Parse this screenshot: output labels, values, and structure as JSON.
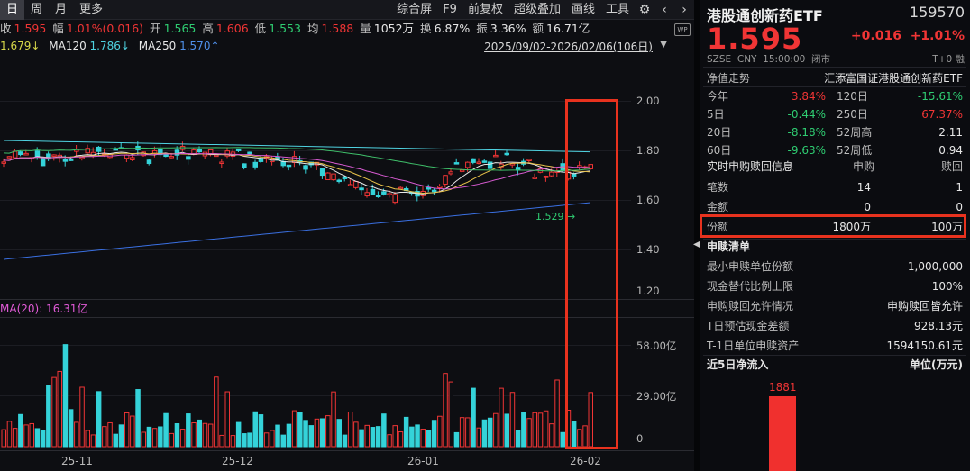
{
  "toolbar": {
    "periods": [
      "日",
      "周",
      "月",
      "更多"
    ],
    "tools": [
      "综合屏",
      "F9",
      "前复权",
      "超级叠加",
      "画线",
      "工具"
    ],
    "settings_icon": "gear-icon",
    "back_icon": "chevron-left-icon",
    "fwd_icon": "chevron-right-icon"
  },
  "quote": {
    "close_label": "收",
    "close": "1.595",
    "amp_label": "幅",
    "amp": "1.01%(0.016)",
    "open_label": "开",
    "open": "1.565",
    "high_label": "高",
    "high": "1.606",
    "low_label": "低",
    "low": "1.553",
    "avg_label": "均",
    "avg": "1.588",
    "vol_label": "量",
    "vol": "1052万",
    "turn_label": "换",
    "turn": "6.87%",
    "swing_label": "振",
    "swing": "3.36%",
    "amount_label": "额",
    "amount": "16.71亿"
  },
  "ma": {
    "ma_first": "1.679↓",
    "ma120_label": "MA120",
    "ma120": "1.786↓",
    "ma250_label": "MA250",
    "ma250": "1.570↑"
  },
  "range_text": "2025/09/02-2026/02/06(106日)",
  "price_axis": [
    "2.00",
    "1.80",
    "1.60",
    "1.40",
    "1.20"
  ],
  "current_tag": "1.529",
  "volume": {
    "title": "MA(20): 16.31亿",
    "axis": [
      "58.00亿",
      "29.00亿",
      "0"
    ]
  },
  "x_axis": [
    "25-11",
    "25-12",
    "26-01",
    "26-02"
  ],
  "colors": {
    "up": "#f03535",
    "down": "#2fcd72",
    "cyan": "#34d3d9",
    "highlight": "#e8321e"
  },
  "chart_data": {
    "type": "candlestick",
    "price_ylim": [
      1.2,
      2.0
    ],
    "volume_ylim": [
      0,
      58
    ]
  },
  "panel": {
    "name": "港股通创新药ETF",
    "code": "159570",
    "price": "1.595",
    "change": "+0.016",
    "change_pct": "+1.01%",
    "info": [
      "SZSE",
      "CNY",
      "15:00:00",
      "闭市"
    ],
    "info_right": "T+0 融",
    "nav_label": "净值走势",
    "nav_index": "汇添富国证港股通创新药ETF",
    "perf": [
      {
        "l1": "今年",
        "v1": "3.84%",
        "c1": "red",
        "l2": "120日",
        "v2": "-15.61%",
        "c2": "green"
      },
      {
        "l1": "5日",
        "v1": "-0.44%",
        "c1": "green",
        "l2": "250日",
        "v2": "67.37%",
        "c2": "red"
      },
      {
        "l1": "20日",
        "v1": "-8.18%",
        "c1": "green",
        "l2": "52周高",
        "v2": "2.11",
        "c2": "white"
      },
      {
        "l1": "60日",
        "v1": "-9.63%",
        "c1": "green",
        "l2": "52周低",
        "v2": "0.94",
        "c2": "white"
      }
    ],
    "realtime": {
      "title": "实时申购赎回信息",
      "col1": "申购",
      "col2": "赎回",
      "rows": [
        {
          "label": "笔数",
          "v1": "14",
          "v2": "1"
        },
        {
          "label": "金额",
          "v1": "0",
          "v2": "0"
        },
        {
          "label": "份额",
          "v1": "1800万",
          "v2": "100万"
        }
      ]
    },
    "list": {
      "title": "申赎清单",
      "rows": [
        {
          "label": "最小申赎单位份额",
          "value": "1,000,000"
        },
        {
          "label": "现金替代比例上限",
          "value": "100%"
        },
        {
          "label": "申购赎回允许情况",
          "value": "申购赎回皆允许"
        },
        {
          "label": "T日预估现金差额",
          "value": "928.13元"
        },
        {
          "label": "T-1日单位申赎资产",
          "value": "1594150.61元"
        }
      ]
    },
    "flow": {
      "title": "近5日净流入",
      "unit": "单位(万元)",
      "value": "1881"
    }
  }
}
